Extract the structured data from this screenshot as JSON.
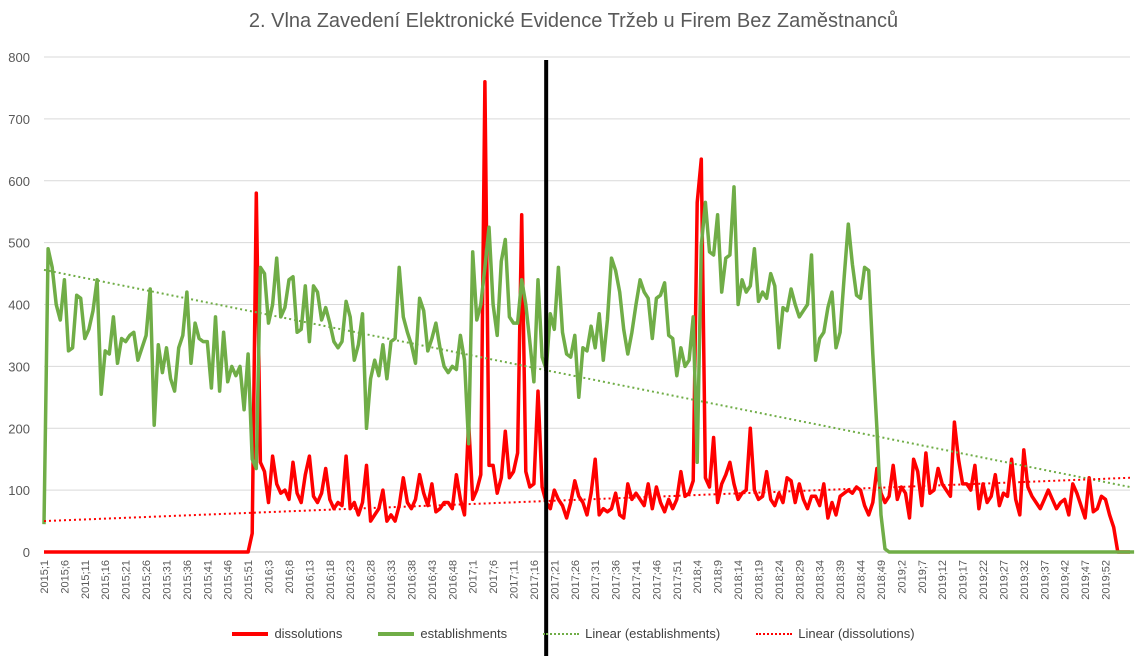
{
  "chart_data": {
    "type": "line",
    "title": "2. Vlna Zavedení Elektronické Evidence Tržeb u Firem Bez Zaměstnanců",
    "ylim": [
      0,
      800
    ],
    "y_ticks": [
      "0",
      "100",
      "200",
      "300",
      "400",
      "500",
      "600",
      "700",
      "800"
    ],
    "grid": "horizontal",
    "legend_position": "bottom",
    "x_tick_labels": [
      "2015;1",
      "2015;6",
      "2015;11",
      "2015;16",
      "2015;21",
      "2015;26",
      "2015;31",
      "2015;36",
      "2015;41",
      "2015;46",
      "2015;51",
      "2016;3",
      "2016;8",
      "2016;13",
      "2016;18",
      "2016;23",
      "2016;28",
      "2016;33",
      "2016;38",
      "2016;43",
      "2016;48",
      "2017;1",
      "2017;6",
      "2017;11",
      "2017;16",
      "2017;21",
      "2017;26",
      "2017;31",
      "2017;36",
      "2017;41",
      "2017;46",
      "2017;51",
      "2018;4",
      "2018;9",
      "2018;14",
      "2018;19",
      "2018;24",
      "2018;29",
      "2018;34",
      "2018;39",
      "2018;44",
      "2018;49",
      "2019;2",
      "2019;7",
      "2019;12",
      "2019;17",
      "2019;22",
      "2019;27",
      "2019;32",
      "2019;37",
      "2019;42",
      "2019;47",
      "2019;52"
    ],
    "x_week_index_of_vertical_marker": 123,
    "series": [
      {
        "name": "dissolutions",
        "color": "#ff0000",
        "values_by_week": [
          0,
          0,
          0,
          0,
          0,
          0,
          0,
          0,
          0,
          0,
          0,
          0,
          0,
          0,
          0,
          0,
          0,
          0,
          0,
          0,
          0,
          0,
          0,
          0,
          0,
          0,
          0,
          0,
          0,
          0,
          0,
          0,
          0,
          0,
          0,
          0,
          0,
          0,
          0,
          0,
          0,
          0,
          0,
          0,
          0,
          0,
          0,
          0,
          0,
          0,
          0,
          30,
          580,
          145,
          130,
          80,
          155,
          110,
          95,
          100,
          85,
          145,
          95,
          80,
          125,
          155,
          90,
          80,
          95,
          135,
          85,
          70,
          80,
          75,
          155,
          70,
          80,
          60,
          80,
          140,
          50,
          60,
          70,
          100,
          50,
          60,
          50,
          75,
          120,
          80,
          70,
          85,
          125,
          95,
          75,
          110,
          65,
          70,
          80,
          80,
          70,
          125,
          85,
          60,
          210,
          85,
          100,
          125,
          760,
          140,
          140,
          95,
          120,
          195,
          120,
          130,
          160,
          545,
          130,
          105,
          110,
          260,
          105,
          80,
          70,
          100,
          85,
          75,
          55,
          80,
          115,
          90,
          80,
          60,
          95,
          150,
          60,
          70,
          65,
          70,
          95,
          60,
          55,
          110,
          85,
          95,
          85,
          75,
          110,
          70,
          105,
          80,
          65,
          85,
          70,
          85,
          130,
          90,
          95,
          115,
          565,
          635,
          120,
          105,
          185,
          80,
          110,
          125,
          145,
          110,
          85,
          95,
          100,
          200,
          100,
          85,
          90,
          130,
          85,
          75,
          95,
          80,
          120,
          115,
          80,
          110,
          85,
          70,
          90,
          90,
          75,
          110,
          55,
          80,
          60,
          90,
          95,
          100,
          95,
          105,
          100,
          75,
          60,
          80,
          135,
          95,
          80,
          90,
          140,
          85,
          105,
          95,
          55,
          150,
          130,
          75,
          160,
          95,
          100,
          135,
          110,
          100,
          90,
          210,
          150,
          110,
          110,
          100,
          140,
          70,
          110,
          80,
          90,
          125,
          75,
          95,
          90,
          150,
          85,
          60,
          165,
          105,
          90,
          80,
          70,
          85,
          100,
          85,
          70,
          80,
          85,
          60,
          110,
          95,
          75,
          55,
          120,
          65,
          70,
          90,
          85,
          60,
          40,
          0,
          0,
          0,
          0
        ]
      },
      {
        "name": "establishments",
        "color": "#70ad47",
        "values_by_week": [
          45,
          490,
          460,
          400,
          375,
          440,
          325,
          330,
          415,
          410,
          345,
          360,
          390,
          440,
          255,
          325,
          320,
          380,
          305,
          345,
          340,
          350,
          355,
          310,
          330,
          350,
          425,
          205,
          335,
          290,
          330,
          280,
          260,
          330,
          350,
          420,
          305,
          370,
          345,
          340,
          340,
          265,
          380,
          260,
          355,
          275,
          300,
          285,
          300,
          230,
          320,
          150,
          135,
          460,
          450,
          370,
          400,
          475,
          380,
          395,
          440,
          445,
          355,
          360,
          430,
          340,
          430,
          420,
          375,
          395,
          370,
          340,
          330,
          340,
          405,
          380,
          310,
          335,
          385,
          200,
          280,
          310,
          285,
          335,
          280,
          340,
          345,
          460,
          380,
          355,
          335,
          305,
          410,
          390,
          325,
          345,
          370,
          330,
          300,
          290,
          300,
          295,
          350,
          310,
          175,
          485,
          375,
          400,
          460,
          525,
          400,
          350,
          470,
          505,
          380,
          370,
          370,
          440,
          400,
          340,
          275,
          440,
          315,
          295,
          385,
          360,
          460,
          355,
          320,
          315,
          350,
          250,
          330,
          325,
          365,
          330,
          385,
          310,
          375,
          475,
          455,
          420,
          360,
          320,
          355,
          400,
          440,
          420,
          410,
          345,
          410,
          415,
          435,
          350,
          345,
          285,
          330,
          300,
          310,
          380,
          145,
          495,
          565,
          485,
          480,
          545,
          420,
          475,
          480,
          590,
          400,
          440,
          420,
          430,
          490,
          405,
          420,
          410,
          450,
          430,
          330,
          395,
          390,
          425,
          400,
          380,
          390,
          400,
          480,
          310,
          345,
          355,
          395,
          420,
          330,
          355,
          445,
          530,
          465,
          415,
          410,
          460,
          455,
          320,
          200,
          60,
          5,
          0,
          0,
          0,
          0,
          0,
          0,
          0,
          0,
          0,
          0,
          0,
          0,
          0,
          0,
          0,
          0,
          0,
          0,
          0,
          0,
          0,
          0,
          0,
          0,
          0,
          0,
          0,
          0,
          0,
          0,
          0,
          0,
          0,
          0,
          0,
          0,
          0,
          0,
          0,
          0,
          0,
          0,
          0,
          0,
          0,
          0,
          0,
          0,
          0,
          0,
          0,
          0,
          0,
          0,
          0,
          0,
          0,
          0,
          0,
          0,
          0
        ]
      },
      {
        "name": "Linear (establishments)",
        "color": "#70ad47",
        "style": "dotted",
        "trend": [
          456,
          105
        ]
      },
      {
        "name": "Linear (dissolutions)",
        "color": "#ff0000",
        "style": "dotted",
        "trend": [
          50,
          120
        ]
      }
    ]
  }
}
